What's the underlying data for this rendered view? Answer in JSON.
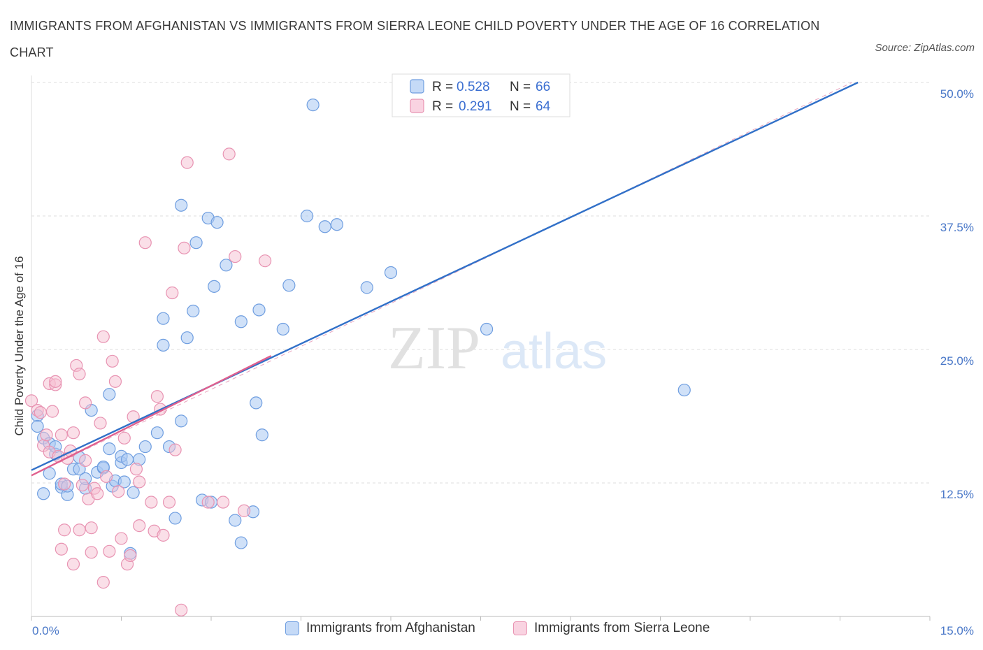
{
  "header": {
    "title": "IMMIGRANTS FROM AFGHANISTAN VS IMMIGRANTS FROM SIERRA LEONE CHILD POVERTY UNDER THE AGE OF 16 CORRELATION CHART",
    "source": "Source: ZipAtlas.com"
  },
  "watermark": {
    "zip": "ZIP",
    "atlas": "atlas"
  },
  "colors": {
    "blue_fill": "#a9c8f2",
    "blue_stroke": "#6f9ee0",
    "blue_line": "#3170c8",
    "pink_fill": "#f6bfd2",
    "pink_stroke": "#e893b2",
    "pink_line": "#e0608e",
    "tick_text": "#4a78c8",
    "grid": "#dddddd"
  },
  "legend": {
    "r_label": "R =",
    "n_label": "N =",
    "rows": [
      {
        "r": "0.528",
        "n": "66"
      },
      {
        "r": "0.291",
        "n": "64"
      }
    ]
  },
  "bottom_legend": [
    "Immigrants from Afghanistan",
    "Immigrants from Sierra Leone"
  ],
  "chart_data": {
    "type": "scatter",
    "title": "IMMIGRANTS FROM AFGHANISTAN VS IMMIGRANTS FROM SIERRA LEONE CHILD POVERTY UNDER THE AGE OF 16 CORRELATION CHART",
    "ylabel": "Child Poverty Under the Age of 16",
    "xlim": [
      0,
      15
    ],
    "ylim": [
      0,
      50
    ],
    "x_tick_labels": [
      "0.0%",
      "15.0%"
    ],
    "y_ticks": [
      12.5,
      25.0,
      37.5,
      50.0
    ],
    "y_tick_labels": [
      "12.5%",
      "25.0%",
      "37.5%",
      "50.0%"
    ],
    "grid": true,
    "legend_position": "top-center",
    "series": [
      {
        "name": "Immigrants from Afghanistan",
        "R": 0.528,
        "N": 66,
        "trend": {
          "x": [
            0,
            13.8
          ],
          "y": [
            13.7,
            50.0
          ]
        },
        "points": [
          [
            0.1,
            18.8
          ],
          [
            0.1,
            17.8
          ],
          [
            0.2,
            16.7
          ],
          [
            0.2,
            11.5
          ],
          [
            0.3,
            16.2
          ],
          [
            0.3,
            13.4
          ],
          [
            0.4,
            15.2
          ],
          [
            0.4,
            15.9
          ],
          [
            0.5,
            12.1
          ],
          [
            0.5,
            12.4
          ],
          [
            0.6,
            11.4
          ],
          [
            0.6,
            12.2
          ],
          [
            0.7,
            13.8
          ],
          [
            0.8,
            14.9
          ],
          [
            0.8,
            13.8
          ],
          [
            0.9,
            12.0
          ],
          [
            0.9,
            12.9
          ],
          [
            1.0,
            19.3
          ],
          [
            1.1,
            13.5
          ],
          [
            1.2,
            13.9
          ],
          [
            1.2,
            14.0
          ],
          [
            1.3,
            20.8
          ],
          [
            1.3,
            15.7
          ],
          [
            1.35,
            12.2
          ],
          [
            1.4,
            12.7
          ],
          [
            1.5,
            14.4
          ],
          [
            1.5,
            15.0
          ],
          [
            1.55,
            12.6
          ],
          [
            1.6,
            14.7
          ],
          [
            1.65,
            5.9
          ],
          [
            1.7,
            11.6
          ],
          [
            1.8,
            14.7
          ],
          [
            1.9,
            15.9
          ],
          [
            2.1,
            17.2
          ],
          [
            2.2,
            25.4
          ],
          [
            2.2,
            27.9
          ],
          [
            2.3,
            15.9
          ],
          [
            2.4,
            9.2
          ],
          [
            2.5,
            38.5
          ],
          [
            2.5,
            18.3
          ],
          [
            2.6,
            26.1
          ],
          [
            2.7,
            28.6
          ],
          [
            2.75,
            35.0
          ],
          [
            2.85,
            10.9
          ],
          [
            2.95,
            37.3
          ],
          [
            3.0,
            10.7
          ],
          [
            3.05,
            30.9
          ],
          [
            3.1,
            36.9
          ],
          [
            3.25,
            32.9
          ],
          [
            3.4,
            9.0
          ],
          [
            3.5,
            6.9
          ],
          [
            3.5,
            27.6
          ],
          [
            3.7,
            9.8
          ],
          [
            3.75,
            20.0
          ],
          [
            3.8,
            28.7
          ],
          [
            3.85,
            17.0
          ],
          [
            4.2,
            26.9
          ],
          [
            4.3,
            31.0
          ],
          [
            4.6,
            37.5
          ],
          [
            4.7,
            47.9
          ],
          [
            4.9,
            36.5
          ],
          [
            5.1,
            36.7
          ],
          [
            5.6,
            30.8
          ],
          [
            6.0,
            32.2
          ],
          [
            7.6,
            26.9
          ],
          [
            10.9,
            21.2
          ]
        ]
      },
      {
        "name": "Immigrants from Sierra Leone",
        "R": 0.291,
        "N": 64,
        "trend": {
          "x": [
            0,
            4.0
          ],
          "y": [
            13.2,
            24.4
          ]
        },
        "trend_dashed": {
          "x": [
            0,
            13.7
          ],
          "y": [
            13.2,
            50.0
          ]
        },
        "points": [
          [
            0.0,
            20.2
          ],
          [
            0.1,
            19.3
          ],
          [
            0.15,
            19.1
          ],
          [
            0.2,
            16.0
          ],
          [
            0.25,
            17.0
          ],
          [
            0.3,
            21.8
          ],
          [
            0.3,
            15.4
          ],
          [
            0.35,
            19.2
          ],
          [
            0.4,
            21.7
          ],
          [
            0.4,
            22.0
          ],
          [
            0.45,
            15.0
          ],
          [
            0.5,
            17.0
          ],
          [
            0.5,
            6.3
          ],
          [
            0.55,
            8.1
          ],
          [
            0.55,
            12.4
          ],
          [
            0.6,
            14.8
          ],
          [
            0.65,
            15.5
          ],
          [
            0.7,
            17.2
          ],
          [
            0.7,
            4.9
          ],
          [
            0.75,
            23.5
          ],
          [
            0.8,
            22.7
          ],
          [
            0.8,
            8.1
          ],
          [
            0.85,
            12.3
          ],
          [
            0.9,
            14.6
          ],
          [
            0.9,
            20.0
          ],
          [
            0.95,
            11.0
          ],
          [
            1.0,
            6.0
          ],
          [
            1.0,
            8.3
          ],
          [
            1.05,
            12.0
          ],
          [
            1.1,
            11.5
          ],
          [
            1.15,
            18.1
          ],
          [
            1.2,
            3.2
          ],
          [
            1.2,
            26.2
          ],
          [
            1.25,
            13.1
          ],
          [
            1.3,
            6.1
          ],
          [
            1.35,
            23.9
          ],
          [
            1.4,
            22.0
          ],
          [
            1.45,
            11.7
          ],
          [
            1.5,
            7.3
          ],
          [
            1.55,
            16.7
          ],
          [
            1.6,
            4.9
          ],
          [
            1.65,
            5.7
          ],
          [
            1.7,
            18.7
          ],
          [
            1.75,
            13.8
          ],
          [
            1.8,
            12.6
          ],
          [
            1.8,
            8.5
          ],
          [
            1.9,
            35.0
          ],
          [
            2.0,
            10.7
          ],
          [
            2.05,
            8.0
          ],
          [
            2.1,
            20.6
          ],
          [
            2.15,
            19.4
          ],
          [
            2.2,
            7.6
          ],
          [
            2.3,
            10.7
          ],
          [
            2.35,
            30.3
          ],
          [
            2.4,
            15.6
          ],
          [
            2.5,
            0.6
          ],
          [
            2.55,
            34.5
          ],
          [
            2.6,
            42.5
          ],
          [
            2.95,
            10.7
          ],
          [
            3.2,
            10.7
          ],
          [
            3.4,
            33.7
          ],
          [
            3.55,
            9.9
          ],
          [
            3.9,
            33.3
          ],
          [
            3.3,
            43.3
          ]
        ]
      }
    ]
  }
}
